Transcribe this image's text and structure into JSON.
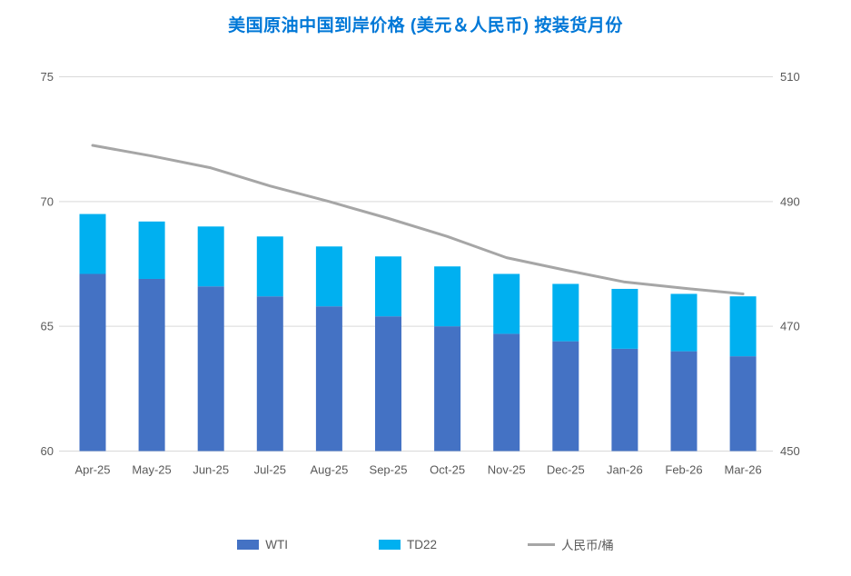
{
  "chart_data": {
    "type": "bar",
    "title": "美国原油中国到岸价格 (美元＆人民币) 按装货月份",
    "categories": [
      "Apr-25",
      "May-25",
      "Jun-25",
      "Jul-25",
      "Aug-25",
      "Sep-25",
      "Oct-25",
      "Nov-25",
      "Dec-25",
      "Jan-26",
      "Feb-26",
      "Mar-26"
    ],
    "series": [
      {
        "name": "WTI",
        "type": "bar",
        "axis": "left",
        "color": "#4472C4",
        "values": [
          67.1,
          66.9,
          66.6,
          66.2,
          65.8,
          65.4,
          65.0,
          64.7,
          64.4,
          64.1,
          64.0,
          63.8
        ]
      },
      {
        "name": "TD22",
        "type": "bar",
        "axis": "left",
        "color": "#00B0F0",
        "stacked_on": "WTI",
        "values": [
          2.4,
          2.3,
          2.4,
          2.4,
          2.4,
          2.4,
          2.4,
          2.4,
          2.3,
          2.4,
          2.3,
          2.4
        ]
      },
      {
        "name": "人民币/桶",
        "type": "line",
        "axis": "right",
        "color": "#A6A6A6",
        "values": [
          499.0,
          497.3,
          495.4,
          492.5,
          490.0,
          487.3,
          484.4,
          481.0,
          479.0,
          477.1,
          476.1,
          475.2
        ]
      }
    ],
    "left_axis": {
      "range": [
        60,
        75
      ],
      "ticks": [
        60,
        65,
        70,
        75
      ]
    },
    "right_axis": {
      "range": [
        450,
        510
      ],
      "ticks": [
        450,
        470,
        490,
        510
      ]
    },
    "grid": true,
    "legend_position": "bottom",
    "colors": {
      "title": "#0078D7",
      "grid": "#D9D9D9",
      "axis_text": "#595959",
      "background": "#FFFFFF"
    }
  }
}
